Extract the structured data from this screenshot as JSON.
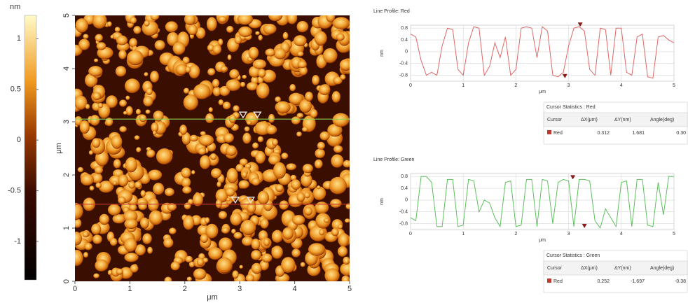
{
  "chart_data": [
    {
      "type": "colorbar",
      "unit_label": "nm",
      "ylim": [
        -1.38,
        1.23
      ],
      "yticks": [
        1,
        0.5,
        0,
        -0.5,
        -1
      ]
    },
    {
      "type": "image",
      "xlabel": "μm",
      "ylabel": "μm",
      "xlim": [
        0,
        5
      ],
      "ylim": [
        0,
        5
      ],
      "xticks": [
        0,
        1,
        2,
        3,
        4,
        5
      ],
      "yticks": [
        0,
        1,
        2,
        3,
        4,
        5
      ],
      "cursor_lines": [
        {
          "color": "#8fd14f",
          "y": 3.05,
          "markers_x": [
            3.06,
            3.32
          ]
        },
        {
          "color": "#c0392b",
          "y": 1.45,
          "markers_x": [
            2.92,
            3.2
          ]
        }
      ]
    },
    {
      "type": "line",
      "title": "Line Profile: Red",
      "xlabel": "μm",
      "ylabel": "nm",
      "xlim": [
        0,
        5
      ],
      "ylim": [
        -1,
        0.9
      ],
      "xticks": [
        0,
        1,
        2,
        3,
        4,
        5
      ],
      "yticks": [
        0.8,
        0.4,
        0,
        -0.4,
        -0.8
      ],
      "grid": true,
      "x": [
        0,
        0.1,
        0.2,
        0.3,
        0.4,
        0.5,
        0.6,
        0.7,
        0.8,
        0.9,
        1,
        1.1,
        1.2,
        1.3,
        1.4,
        1.5,
        1.6,
        1.7,
        1.8,
        1.9,
        2,
        2.1,
        2.2,
        2.3,
        2.4,
        2.5,
        2.6,
        2.7,
        2.8,
        2.9,
        3,
        3.1,
        3.2,
        3.3,
        3.4,
        3.5,
        3.6,
        3.7,
        3.8,
        3.9,
        4,
        4.1,
        4.2,
        4.3,
        4.4,
        4.5,
        4.6,
        4.7,
        4.8,
        4.9,
        5
      ],
      "series": [
        {
          "color": "#e06666",
          "values": [
            0.6,
            0.5,
            -0.3,
            -0.8,
            -0.7,
            -0.8,
            0.2,
            0.8,
            0.75,
            -0.6,
            -0.8,
            0.3,
            0.85,
            0.8,
            -0.8,
            -0.5,
            0.3,
            -0.2,
            0.5,
            -0.8,
            -0.6,
            0.8,
            0.85,
            0.8,
            -0.2,
            0.85,
            0.7,
            -0.8,
            -0.85,
            -0.7,
            0.2,
            0.8,
            0.85,
            0.7,
            -0.6,
            -0.8,
            0.8,
            0.75,
            -0.8,
            0.8,
            0.8,
            -0.7,
            -0.8,
            0.5,
            0.6,
            -0.85,
            -0.9,
            0.5,
            0.55,
            0.4,
            0.3
          ]
        }
      ],
      "cursors": {
        "color": "#8b1a1a",
        "x": [
          2.93,
          3.22
        ],
        "y": [
          -0.9,
          0.85
        ]
      },
      "cursor_statistics": {
        "title": "Cursor Statistics : Red",
        "headers": [
          "Cursor",
          "ΔX(μm)",
          "ΔY(nm)",
          "Angle(deg)"
        ],
        "row": [
          "Red",
          "0.312",
          "1.681",
          "0.30"
        ],
        "swatch": "#c0392b"
      }
    },
    {
      "type": "line",
      "title": "Line Profile: Green",
      "xlabel": "μm",
      "ylabel": "nm",
      "xlim": [
        0,
        5
      ],
      "ylim": [
        -1,
        0.9
      ],
      "xticks": [
        0,
        1,
        2,
        3,
        4,
        5
      ],
      "yticks": [
        0.8,
        0.4,
        0,
        -0.4,
        -0.8
      ],
      "grid": true,
      "x": [
        0,
        0.1,
        0.2,
        0.3,
        0.4,
        0.5,
        0.6,
        0.7,
        0.8,
        0.9,
        1,
        1.1,
        1.2,
        1.3,
        1.4,
        1.5,
        1.6,
        1.7,
        1.8,
        1.9,
        2,
        2.1,
        2.2,
        2.3,
        2.4,
        2.5,
        2.6,
        2.7,
        2.8,
        2.9,
        3,
        3.1,
        3.2,
        3.3,
        3.4,
        3.5,
        3.6,
        3.7,
        3.8,
        3.9,
        4,
        4.1,
        4.2,
        4.3,
        4.4,
        4.5,
        4.6,
        4.7,
        4.8,
        4.9,
        5
      ],
      "series": [
        {
          "color": "#5cc05c",
          "values": [
            -0.6,
            -0.7,
            0.8,
            0.8,
            0.6,
            -0.9,
            -0.9,
            0.7,
            0.7,
            -0.9,
            -0.85,
            0.7,
            0.65,
            -0.4,
            0,
            -0.1,
            -0.6,
            -0.9,
            0.6,
            0.65,
            -0.9,
            -0.85,
            0.7,
            0.7,
            -0.9,
            0.7,
            0.65,
            -0.8,
            0.6,
            0.7,
            0.65,
            -0.9,
            0.7,
            0.7,
            0.65,
            -0.7,
            -0.95,
            -0.3,
            -0.6,
            -0.9,
            0.6,
            0.65,
            -0.9,
            0.7,
            0.7,
            -0.85,
            -0.9,
            0.6,
            -0.5,
            0.8,
            0.8
          ]
        }
      ],
      "cursors": {
        "color": "#8b1a1a",
        "x": [
          3.08,
          3.3
        ],
        "y": [
          0.7,
          -0.95
        ]
      },
      "cursor_statistics": {
        "title": "Cursor Statistics : Green",
        "headers": [
          "Cursor",
          "ΔX(μm)",
          "ΔY(nm)",
          "Angle(deg)"
        ],
        "row": [
          "Red",
          "0.252",
          "-1.697",
          "-0.38"
        ],
        "swatch": "#c0392b"
      }
    }
  ]
}
